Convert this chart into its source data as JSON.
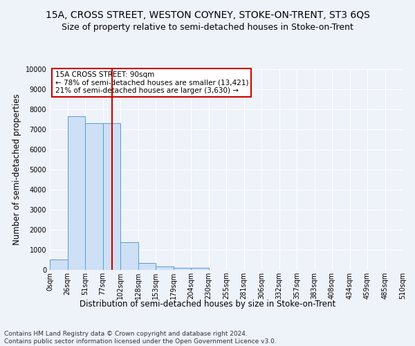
{
  "title": "15A, CROSS STREET, WESTON COYNEY, STOKE-ON-TRENT, ST3 6QS",
  "subtitle": "Size of property relative to semi-detached houses in Stoke-on-Trent",
  "xlabel": "Distribution of semi-detached houses by size in Stoke-on-Trent",
  "ylabel": "Number of semi-detached properties",
  "footer_line1": "Contains HM Land Registry data © Crown copyright and database right 2024.",
  "footer_line2": "Contains public sector information licensed under the Open Government Licence v3.0.",
  "bin_labels": [
    "0sqm",
    "26sqm",
    "51sqm",
    "77sqm",
    "102sqm",
    "128sqm",
    "153sqm",
    "179sqm",
    "204sqm",
    "230sqm",
    "255sqm",
    "281sqm",
    "306sqm",
    "332sqm",
    "357sqm",
    "383sqm",
    "408sqm",
    "434sqm",
    "459sqm",
    "485sqm",
    "510sqm"
  ],
  "bar_values": [
    530,
    7650,
    7300,
    7300,
    1380,
    330,
    170,
    120,
    100,
    0,
    0,
    0,
    0,
    0,
    0,
    0,
    0,
    0,
    0,
    0
  ],
  "bar_color": "#cde0f5",
  "bar_edge_color": "#5b9bd5",
  "vline_x": 3.52,
  "vline_color": "#cc0000",
  "annotation_text": "15A CROSS STREET: 90sqm\n← 78% of semi-detached houses are smaller (13,421)\n21% of semi-detached houses are larger (3,630) →",
  "annotation_box_color": "#ffffff",
  "annotation_box_edge": "#cc0000",
  "ylim": [
    0,
    10000
  ],
  "yticks": [
    0,
    1000,
    2000,
    3000,
    4000,
    5000,
    6000,
    7000,
    8000,
    9000,
    10000
  ],
  "background_color": "#eef2f9",
  "grid_color": "#ffffff",
  "title_fontsize": 10,
  "subtitle_fontsize": 9,
  "axis_label_fontsize": 8.5,
  "tick_fontsize": 7,
  "annotation_fontsize": 7.5,
  "footer_fontsize": 6.5
}
